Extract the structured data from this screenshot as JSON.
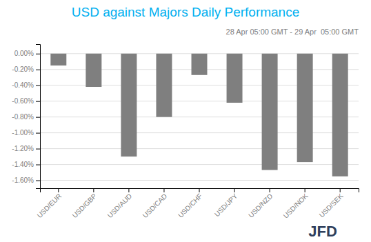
{
  "chart_data": {
    "type": "bar",
    "title": "USD against Majors Daily Performance",
    "subtitle": "28 Apr 05:00 GMT - 29 Apr  05:00 GMT",
    "annotations": [
      "JFD"
    ],
    "categories": [
      "USD/EUR",
      "USD/GBP",
      "USD/AUD",
      "USD/CAD",
      "USD/CHF",
      "USD/JPY",
      "USD/NZD",
      "USD/NOK",
      "USD/SEK"
    ],
    "values": [
      -0.15,
      -0.42,
      -1.3,
      -0.8,
      -0.27,
      -0.62,
      -1.47,
      -1.37,
      -1.55
    ],
    "color": "#7f7f7f",
    "ylim": [
      -1.7,
      0.12
    ],
    "yticks": [
      {
        "value": 0.0,
        "label": "0.00%"
      },
      {
        "value": -0.2,
        "label": "-0.20%"
      },
      {
        "value": -0.4,
        "label": "-0.40%"
      },
      {
        "value": -0.6,
        "label": "-0.60%"
      },
      {
        "value": -0.8,
        "label": "-0.80%"
      },
      {
        "value": -1.0,
        "label": "-1.00%"
      },
      {
        "value": -1.2,
        "label": "-1.20%"
      },
      {
        "value": -1.4,
        "label": "-1.40%"
      },
      {
        "value": -1.6,
        "label": "-1.60%"
      }
    ],
    "grid": true
  }
}
